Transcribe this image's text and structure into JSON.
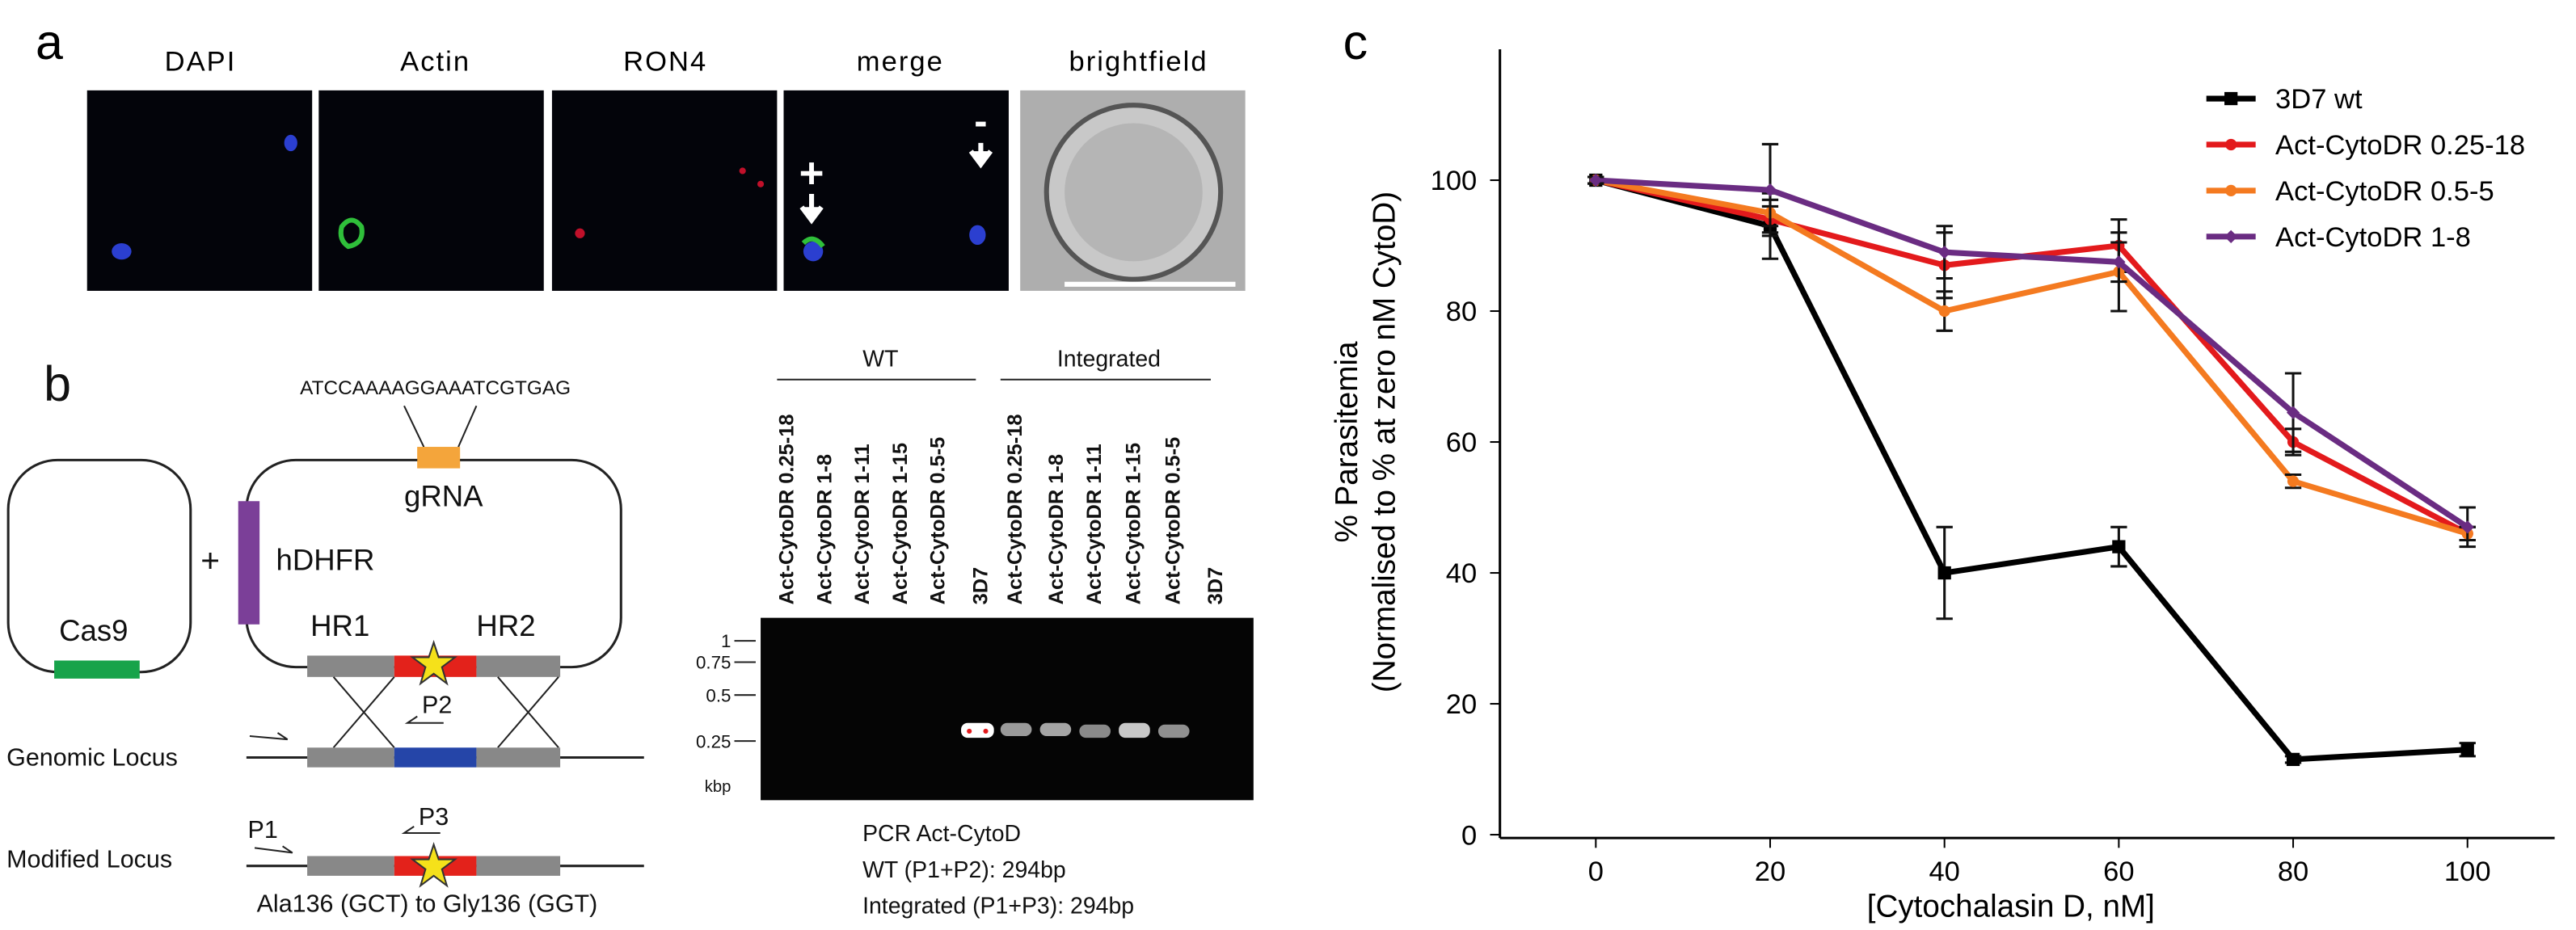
{
  "panel_a": {
    "label": "a",
    "channels": [
      "DAPI",
      "Actin",
      "RON4",
      "merge",
      "brightfield"
    ],
    "plus": "+",
    "minus": "-"
  },
  "panel_b": {
    "label": "b",
    "sequence": "ATCCAAAAGGAAATCGTGAG",
    "grna": "gRNA",
    "hdhfr": "hDHFR",
    "plus": "+",
    "cas9": "Cas9",
    "hr1": "HR1",
    "hr2": "HR2",
    "p1": "P1",
    "p2": "P2",
    "p3": "P3",
    "genomic_locus": "Genomic Locus",
    "modified_locus": "Modified Locus",
    "mutation": "Ala136 (GCT) to Gly136 (GGT)",
    "gel": {
      "wt": "WT",
      "integrated": "Integrated",
      "lanes": [
        "Act-CytoDR 0.25-18",
        "Act-CytoDR 1-8",
        "Act-CytoDR 1-11",
        "Act-CytoDR 1-15",
        "Act-CytoDR 0.5-5",
        "3D7",
        "Act-CytoDR 0.25-18",
        "Act-CytoDR 1-8",
        "Act-CytoDR 1-11",
        "Act-CytoDR 1-15",
        "Act-CytoDR 0.5-5",
        "3D7"
      ],
      "ladder": [
        "1",
        "0.75",
        "0.5",
        "0.25",
        "kbp"
      ],
      "caption": [
        "PCR Act-CytoD",
        "WT (P1+P2): 294bp",
        "Integrated (P1+P3): 294bp"
      ]
    }
  },
  "chart_data": {
    "type": "line",
    "panel_label": "c",
    "y_label": [
      "% Parasitemia",
      "(Normalised to % at zero nM CytoD)"
    ],
    "x_label": "[Cytochalasin D, nM]",
    "x": [
      0,
      20,
      40,
      60,
      80,
      100
    ],
    "xlim": [
      -11,
      110
    ],
    "xticks": [
      0,
      20,
      40,
      60,
      80,
      100
    ],
    "ylim": [
      0,
      120
    ],
    "yticks": [
      0,
      20,
      40,
      60,
      80,
      100
    ],
    "legend": "upper right",
    "series": [
      {
        "name": "3D7 wt",
        "color": "#000000",
        "marker": "square",
        "values": [
          100,
          93,
          40,
          44,
          11.5,
          13
        ],
        "errors": [
          0.5,
          5,
          7,
          3,
          0.5,
          1
        ]
      },
      {
        "name": "Act-CytoDR 0.25-18",
        "color": "#e31a1c",
        "marker": "circle",
        "values": [
          100,
          94,
          87,
          90,
          60,
          46
        ],
        "errors": [
          0.5,
          2,
          5,
          4,
          2,
          1
        ]
      },
      {
        "name": "Act-CytoDR 0.5-5",
        "color": "#f47a20",
        "marker": "circle",
        "values": [
          100,
          95,
          80,
          86,
          54,
          46
        ],
        "errors": [
          0.5,
          2,
          3,
          6,
          1,
          1
        ]
      },
      {
        "name": "Act-CytoDR 1-8",
        "color": "#6a2c82",
        "marker": "diamond",
        "values": [
          100,
          98.5,
          89,
          87.5,
          64.5,
          47
        ],
        "errors": [
          0.5,
          7,
          4,
          3,
          6,
          3
        ]
      }
    ]
  }
}
